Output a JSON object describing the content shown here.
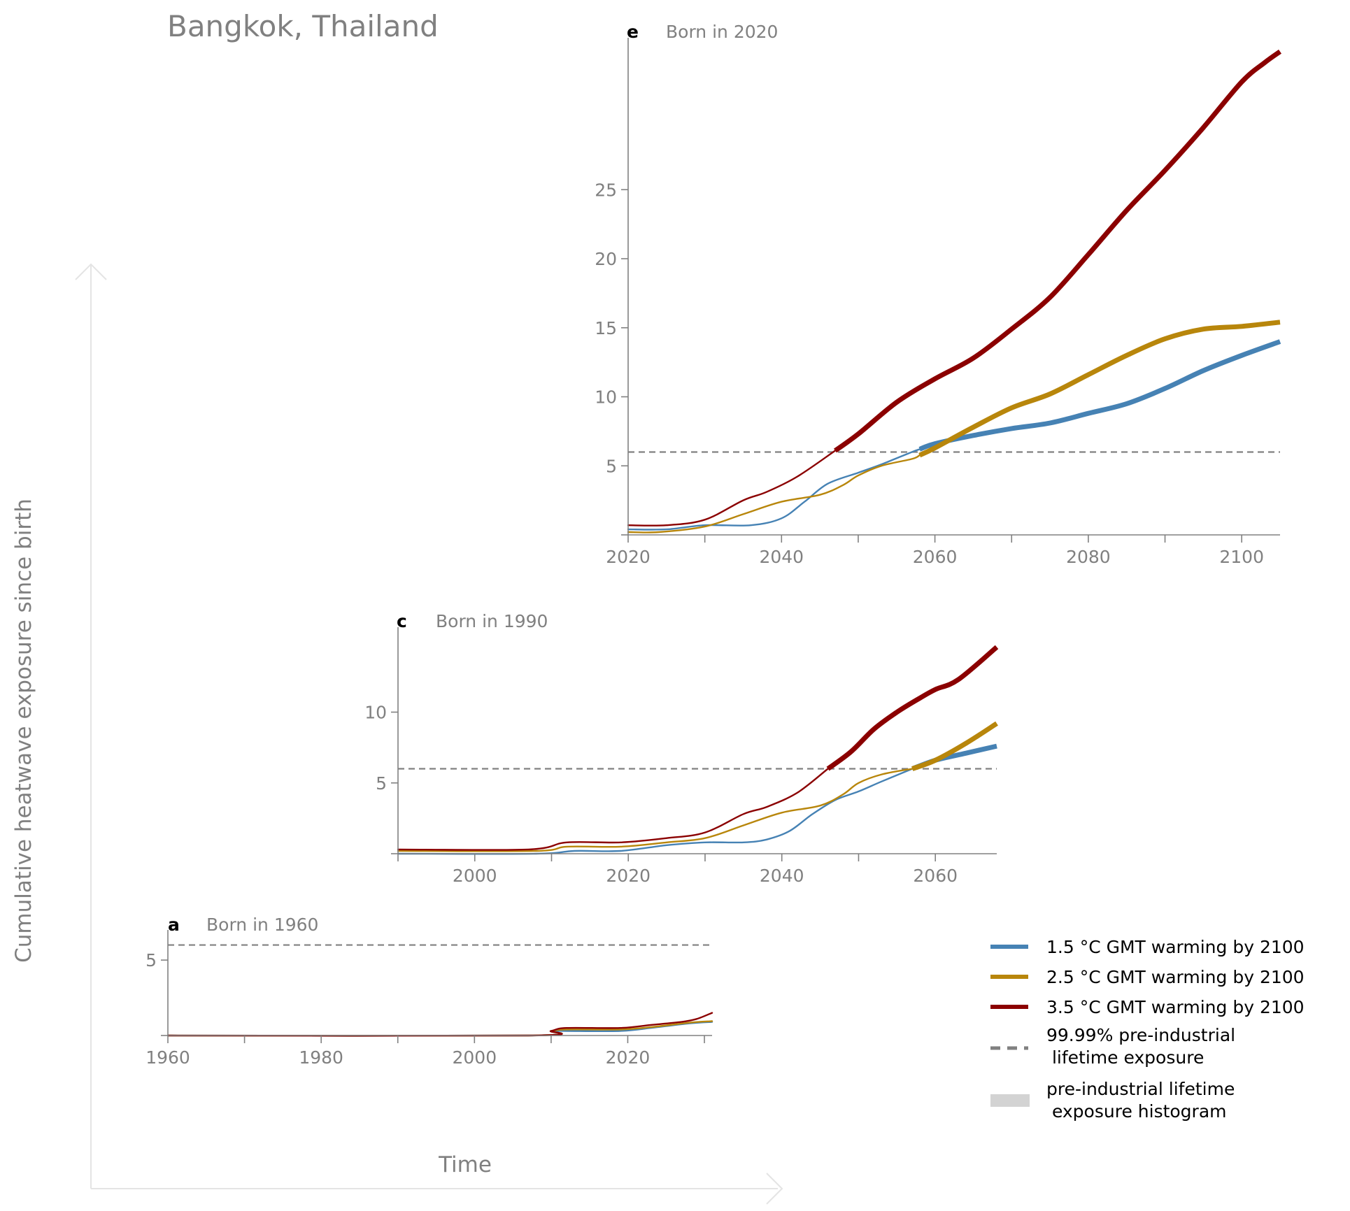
{
  "figure": {
    "title": "Bangkok, Thailand",
    "ylabel": "Cumulative heatwave exposure since birth",
    "xlabel": "Time"
  },
  "colors": {
    "blue": "#4682b4",
    "gold": "#b8860b",
    "red": "#8b0000",
    "dashed": "#808080",
    "histogram": "#d3d3d3",
    "axis": "#808080"
  },
  "legend": {
    "items": [
      {
        "label": "1.5 °C GMT warming by 2100",
        "kind": "line",
        "color": "#4682b4"
      },
      {
        "label": "2.5 °C GMT warming by 2100",
        "kind": "line",
        "color": "#b8860b"
      },
      {
        "label": "3.5 °C GMT warming by 2100",
        "kind": "line",
        "color": "#8b0000"
      },
      {
        "label": [
          "99.99% pre-industrial",
          " lifetime exposure"
        ],
        "kind": "dashed",
        "color": "#808080"
      },
      {
        "label": [
          "pre-industrial lifetime",
          " exposure histogram"
        ],
        "kind": "patch",
        "color": "#d3d3d3"
      }
    ]
  },
  "chart_data": [
    {
      "id": "a",
      "type": "line",
      "letter": "a",
      "title": "Born in 1960",
      "xlim": [
        1960,
        2031
      ],
      "ylim": [
        0,
        7
      ],
      "xticks": [
        1960,
        1980,
        2000,
        2020
      ],
      "minor_xticks": [
        1970,
        1990,
        2010,
        2030
      ],
      "yticks": [
        5
      ],
      "threshold": 6,
      "series": [
        {
          "name": "1.5 °C GMT warming by 2100",
          "color": "#4682b4",
          "x": [
            1960,
            2007,
            2010,
            2012,
            2019,
            2023,
            2028,
            2031
          ],
          "y": [
            0,
            0,
            0.3,
            0.3,
            0.3,
            0.5,
            0.8,
            0.9
          ],
          "thick_from": null
        },
        {
          "name": "2.5 °C GMT warming by 2100",
          "color": "#b8860b",
          "x": [
            1960,
            2007,
            2010,
            2012,
            2019,
            2023,
            2028,
            2031
          ],
          "y": [
            0,
            0,
            0.3,
            0.4,
            0.4,
            0.55,
            0.85,
            0.95
          ],
          "thick_from": null
        },
        {
          "name": "3.5 °C GMT warming by 2100",
          "color": "#8b0000",
          "x": [
            1960,
            2007,
            2010,
            2012,
            2019,
            2023,
            2027,
            2029,
            2031
          ],
          "y": [
            0,
            0,
            0.3,
            0.5,
            0.5,
            0.7,
            0.9,
            1.1,
            1.5
          ],
          "thick_from": null
        }
      ]
    },
    {
      "id": "c",
      "type": "line",
      "letter": "c",
      "title": "Born in 1990",
      "xlim": [
        1990,
        2068
      ],
      "ylim": [
        0,
        16
      ],
      "xticks": [
        2000,
        2020,
        2040,
        2060
      ],
      "minor_xticks": [
        1990,
        2010,
        2030,
        2050
      ],
      "yticks": [
        5,
        10
      ],
      "threshold": 6,
      "series": [
        {
          "name": "1.5 °C GMT warming by 2100",
          "color": "#4682b4",
          "x": [
            1990,
            2008,
            2013,
            2019,
            2025,
            2030,
            2035,
            2038,
            2041,
            2044,
            2047,
            2050,
            2053,
            2057,
            2060,
            2064,
            2068
          ],
          "y": [
            0,
            0,
            0.2,
            0.2,
            0.6,
            0.8,
            0.8,
            1.0,
            1.6,
            2.8,
            3.8,
            4.4,
            5.1,
            6.0,
            6.6,
            7.1,
            7.6
          ],
          "thick_from": 2057
        },
        {
          "name": "2.5 °C GMT warming by 2100",
          "color": "#b8860b",
          "x": [
            1990,
            2008,
            2012,
            2019,
            2025,
            2030,
            2035,
            2040,
            2045,
            2048,
            2050,
            2053,
            2057,
            2060,
            2064,
            2068
          ],
          "y": [
            0.2,
            0.2,
            0.5,
            0.5,
            0.8,
            1.1,
            2.0,
            2.9,
            3.4,
            4.2,
            5.0,
            5.6,
            6.0,
            6.6,
            7.8,
            9.2
          ],
          "thick_from": 2057
        },
        {
          "name": "3.5 °C GMT warming by 2100",
          "color": "#8b0000",
          "x": [
            1990,
            2007,
            2012,
            2019,
            2025,
            2030,
            2035,
            2038,
            2042,
            2046,
            2049,
            2052,
            2055,
            2058,
            2060,
            2063,
            2068
          ],
          "y": [
            0.3,
            0.3,
            0.8,
            0.8,
            1.1,
            1.5,
            2.8,
            3.3,
            4.3,
            6.0,
            7.2,
            8.8,
            10.0,
            11.0,
            11.6,
            12.3,
            14.6
          ],
          "thick_from": 2046
        }
      ]
    },
    {
      "id": "e",
      "type": "line",
      "letter": "e",
      "title": "Born in 2020",
      "xlim": [
        2020,
        2105
      ],
      "ylim": [
        0,
        36
      ],
      "xticks": [
        2020,
        2040,
        2060,
        2080,
        2100
      ],
      "minor_xticks": [
        2030,
        2050,
        2070,
        2090
      ],
      "yticks": [
        5,
        10,
        15,
        20,
        25
      ],
      "threshold": 6,
      "series": [
        {
          "name": "1.5 °C GMT warming by 2100",
          "color": "#4682b4",
          "x": [
            2020,
            2025,
            2030,
            2036,
            2040,
            2043,
            2046,
            2050,
            2053,
            2057,
            2060,
            2065,
            2070,
            2075,
            2080,
            2085,
            2090,
            2095,
            2100,
            2105
          ],
          "y": [
            0.4,
            0.4,
            0.7,
            0.7,
            1.2,
            2.4,
            3.7,
            4.5,
            5.1,
            6.0,
            6.6,
            7.2,
            7.7,
            8.1,
            8.8,
            9.5,
            10.6,
            11.9,
            13.0,
            14.0
          ],
          "thick_from": 2058
        },
        {
          "name": "2.5 °C GMT warming by 2100",
          "color": "#b8860b",
          "x": [
            2020,
            2024,
            2030,
            2035,
            2040,
            2045,
            2048,
            2050,
            2053,
            2057,
            2060,
            2065,
            2070,
            2075,
            2080,
            2085,
            2090,
            2095,
            2100,
            2105
          ],
          "y": [
            0.2,
            0.2,
            0.6,
            1.5,
            2.4,
            2.9,
            3.6,
            4.3,
            5.0,
            5.5,
            6.3,
            7.8,
            9.2,
            10.2,
            11.6,
            13.0,
            14.2,
            14.9,
            15.1,
            15.4
          ],
          "thick_from": 2058
        },
        {
          "name": "3.5 °C GMT warming by 2100",
          "color": "#8b0000",
          "x": [
            2020,
            2025,
            2030,
            2035,
            2038,
            2042,
            2047,
            2050,
            2055,
            2060,
            2065,
            2070,
            2075,
            2080,
            2085,
            2090,
            2095,
            2100,
            2103,
            2105
          ],
          "y": [
            0.7,
            0.7,
            1.1,
            2.5,
            3.1,
            4.2,
            6.1,
            7.3,
            9.6,
            11.3,
            12.8,
            14.9,
            17.2,
            20.3,
            23.5,
            26.4,
            29.5,
            32.8,
            34.2,
            35.0
          ],
          "thick_from": 2047
        }
      ]
    }
  ]
}
